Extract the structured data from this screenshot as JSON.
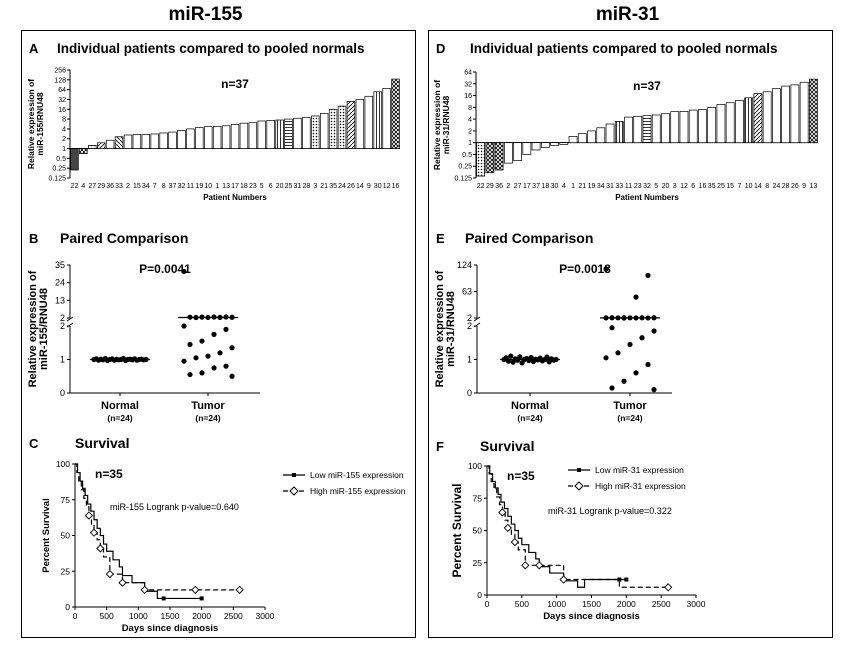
{
  "titles": {
    "left": "miR-155",
    "right": "miR-31"
  },
  "chart_data": [
    {
      "id": "A",
      "type": "bar",
      "letter": "A",
      "title": "Individual patients compared to pooled normals",
      "n_label": "n=37",
      "ylabel_lines": [
        "Relative expression of",
        "miR-155/RNU48"
      ],
      "xlabel": "Patient Numbers",
      "yscale": "log2",
      "ylim": [
        0.125,
        256
      ],
      "yticks": [
        "0.125",
        "0.25",
        "0.5",
        "1",
        "2",
        "4",
        "8",
        "16",
        "32",
        "64",
        "128",
        "256"
      ],
      "categories": [
        "22",
        "4",
        "27",
        "29",
        "36",
        "33",
        "2",
        "15",
        "34",
        "7",
        "8",
        "37",
        "32",
        "11",
        "19",
        "10",
        "1",
        "13",
        "17",
        "18",
        "23",
        "5",
        "6",
        "20",
        "25",
        "31",
        "28",
        "3",
        "21",
        "35",
        "24",
        "26",
        "14",
        "9",
        "30",
        "12",
        "16"
      ],
      "values": [
        0.22,
        0.7,
        1.25,
        1.5,
        1.8,
        2.3,
        2.6,
        2.7,
        2.7,
        2.8,
        3.0,
        3.2,
        3.6,
        4.0,
        4.4,
        4.7,
        4.8,
        5.0,
        5.5,
        6.0,
        6.2,
        7.0,
        7.3,
        7.5,
        8.0,
        8.5,
        9.0,
        10.0,
        12.0,
        16.0,
        20.0,
        28.0,
        32.0,
        40.0,
        55.0,
        70.0,
        135.0
      ],
      "patterns": [
        "solid",
        "cross",
        "dots",
        "diag",
        "plain",
        "hatch",
        "plain",
        "plain",
        "plain",
        "plain",
        "plain",
        "plain",
        "plain",
        "plain",
        "plain",
        "plain",
        "plain",
        "plain",
        "plain",
        "plain",
        "plain",
        "plain",
        "plain",
        "vline",
        "hline",
        "plain",
        "plain",
        "dots",
        "plain",
        "dots",
        "dots",
        "diag",
        "plain",
        "plain",
        "vline",
        "plain",
        "cross"
      ]
    },
    {
      "id": "D",
      "type": "bar",
      "letter": "D",
      "title": "Individual patients compared to pooled normals",
      "n_label": "n=37",
      "ylabel_lines": [
        "Relative expression of",
        "miR-31/RNU48"
      ],
      "xlabel": "Patient Numbers",
      "yscale": "log2",
      "ylim": [
        0.125,
        64
      ],
      "yticks": [
        "0.125",
        "0.25",
        "0.5",
        "1",
        "2",
        "4",
        "8",
        "16",
        "32",
        "64"
      ],
      "categories": [
        "22",
        "29",
        "36",
        "2",
        "27",
        "17",
        "37",
        "18",
        "30",
        "4",
        "1",
        "21",
        "19",
        "34",
        "31",
        "33",
        "11",
        "23",
        "32",
        "5",
        "20",
        "3",
        "12",
        "6",
        "16",
        "35",
        "25",
        "15",
        "7",
        "10",
        "14",
        "8",
        "24",
        "28",
        "26",
        "9",
        "13"
      ],
      "values": [
        0.14,
        0.17,
        0.2,
        0.3,
        0.35,
        0.5,
        0.65,
        0.75,
        0.85,
        0.9,
        1.45,
        1.7,
        2.0,
        2.4,
        3.0,
        3.5,
        4.5,
        4.7,
        4.9,
        5.1,
        5.5,
        6.2,
        6.3,
        6.8,
        7.0,
        8.0,
        9.5,
        10.5,
        12.0,
        14.0,
        18.0,
        20.0,
        24.0,
        28.0,
        30.0,
        35.0,
        42.0
      ],
      "patterns": [
        "dots",
        "cross",
        "cross",
        "plain",
        "plain",
        "plain",
        "plain",
        "plain",
        "plain",
        "plain",
        "plain",
        "plain",
        "plain",
        "plain",
        "plain",
        "vline",
        "plain",
        "plain",
        "hline",
        "plain",
        "plain",
        "plain",
        "plain",
        "plain",
        "plain",
        "plain",
        "plain",
        "plain",
        "plain",
        "vline",
        "diag",
        "plain",
        "plain",
        "plain",
        "plain",
        "plain",
        "cross"
      ]
    },
    {
      "id": "B",
      "type": "scatter",
      "letter": "B",
      "title": "Paired Comparison",
      "p_label": "P=0.0041",
      "ylabel_lines": [
        "Relative expression of",
        "miR-155/RNU48"
      ],
      "upper_ticks": [
        "2",
        "13",
        "24",
        "35"
      ],
      "upper_range": [
        2,
        35
      ],
      "lower_ticks": [
        "0",
        "1",
        "2"
      ],
      "lower_range": [
        0,
        2
      ],
      "groups": [
        {
          "name": "Normal",
          "n_label": "(n=24)",
          "mean": 1.0,
          "points": [
            1.0,
            1.02,
            0.98,
            1.01,
            0.99,
            1.03,
            0.97,
            1.0,
            1.02,
            0.98,
            1.01,
            0.99,
            1.0,
            1.03,
            0.97,
            1.0,
            1.01,
            0.99,
            1.02,
            0.98,
            1.0,
            1.01,
            0.99,
            1.0
          ]
        },
        {
          "name": "Tumor",
          "n_label": "(n=24)",
          "mean": 2.3,
          "points": [
            31,
            2.6,
            2.6,
            2.55,
            2.5,
            2.45,
            2.4,
            2.35,
            2.3,
            2.0,
            1.9,
            1.75,
            1.55,
            1.45,
            1.35,
            1.2,
            1.1,
            1.05,
            0.95,
            0.8,
            0.75,
            0.6,
            0.55,
            0.5
          ]
        }
      ]
    },
    {
      "id": "E",
      "type": "scatter",
      "letter": "E",
      "title": "Paired Comparison",
      "p_label": "P=0.0018",
      "ylabel_lines": [
        "Relative expression of",
        "miR-31/RNU48"
      ],
      "upper_ticks": [
        "2",
        "63",
        "124"
      ],
      "upper_range": [
        2,
        124
      ],
      "lower_ticks": [
        "0",
        "1",
        "2"
      ],
      "lower_range": [
        0,
        2
      ],
      "groups": [
        {
          "name": "Normal",
          "n_label": "(n=24)",
          "mean": 1.0,
          "points": [
            1.0,
            1.05,
            0.95,
            1.1,
            0.92,
            1.02,
            0.98,
            1.08,
            0.9,
            1.0,
            1.03,
            0.97,
            1.06,
            0.94,
            1.01,
            0.99,
            1.04,
            0.96,
            1.0,
            1.07,
            0.93,
            1.02,
            0.98,
            1.0
          ]
        },
        {
          "name": "Tumor",
          "n_label": "(n=24)",
          "mean": 2.3,
          "points": [
            115,
            100,
            50,
            2.65,
            2.6,
            2.55,
            2.5,
            2.45,
            2.4,
            2.3,
            2.2,
            2.15,
            2.05,
            1.95,
            1.85,
            1.65,
            1.45,
            1.2,
            1.05,
            0.85,
            0.6,
            0.35,
            0.15,
            0.1
          ]
        }
      ]
    },
    {
      "id": "C",
      "type": "line",
      "letter": "C",
      "title": "Survival",
      "n_label": "n=35",
      "xlabel": "Days since diagnosis",
      "ylabel": "Percent Survival",
      "xlim": [
        0,
        3000
      ],
      "ylim": [
        0,
        100
      ],
      "xticks": [
        "0",
        "500",
        "1000",
        "1500",
        "2000",
        "2500",
        "3000"
      ],
      "yticks": [
        "0",
        "25",
        "50",
        "75",
        "100"
      ],
      "logrank": "miR-155 Logrank p-value=0.640",
      "series": [
        {
          "name": "Low miR-155 expression",
          "style": "solid",
          "marker": "square",
          "x": [
            0,
            40,
            80,
            120,
            160,
            200,
            250,
            300,
            350,
            400,
            450,
            500,
            600,
            700,
            750,
            900,
            1100,
            1300,
            1400,
            2000
          ],
          "y": [
            100,
            94,
            88,
            83,
            78,
            72,
            67,
            61,
            55,
            50,
            44,
            39,
            33,
            28,
            22,
            17,
            11,
            6,
            6,
            6
          ],
          "markers": [
            [
              1400,
              6
            ],
            [
              2000,
              6
            ]
          ]
        },
        {
          "name": "High miR-155 expression",
          "style": "dashed",
          "marker": "diamond",
          "x": [
            0,
            30,
            60,
            100,
            140,
            180,
            220,
            260,
            300,
            350,
            400,
            450,
            550,
            750,
            1100,
            1900,
            2600
          ],
          "y": [
            100,
            94,
            88,
            82,
            76,
            70,
            64,
            58,
            52,
            47,
            41,
            35,
            23,
            17,
            12,
            12,
            12
          ],
          "markers": [
            [
              220,
              64
            ],
            [
              300,
              52
            ],
            [
              400,
              41
            ],
            [
              550,
              23
            ],
            [
              750,
              17
            ],
            [
              1100,
              12
            ],
            [
              1900,
              12
            ],
            [
              2600,
              12
            ]
          ]
        }
      ]
    },
    {
      "id": "F",
      "type": "line",
      "letter": "F",
      "title": "Survival",
      "n_label": "n=35",
      "xlabel": "Days since diagnosis",
      "ylabel": "Percent Survival",
      "xlim": [
        0,
        3000
      ],
      "ylim": [
        0,
        100
      ],
      "xticks": [
        "0",
        "500",
        "1000",
        "1500",
        "2000",
        "2500",
        "3000"
      ],
      "yticks": [
        "0",
        "25",
        "50",
        "75",
        "100"
      ],
      "logrank": "miR-31 Logrank p-value=0.322",
      "series": [
        {
          "name": "Low miR-31 expression",
          "style": "solid",
          "marker": "square",
          "x": [
            0,
            40,
            80,
            120,
            160,
            200,
            250,
            300,
            350,
            400,
            450,
            500,
            600,
            700,
            750,
            900,
            1100,
            1300,
            1400,
            2000
          ],
          "y": [
            100,
            94,
            88,
            83,
            78,
            72,
            67,
            61,
            55,
            50,
            44,
            39,
            33,
            28,
            22,
            17,
            11,
            6,
            12,
            12
          ],
          "markers": [
            [
              1900,
              12
            ],
            [
              2000,
              12
            ]
          ]
        },
        {
          "name": "High miR-31 expression",
          "style": "dashed",
          "marker": "diamond",
          "x": [
            0,
            30,
            60,
            100,
            140,
            180,
            220,
            260,
            300,
            350,
            400,
            450,
            550,
            750,
            1100,
            1900,
            2600
          ],
          "y": [
            100,
            94,
            88,
            82,
            76,
            70,
            64,
            58,
            52,
            47,
            41,
            35,
            23,
            23,
            12,
            6,
            6
          ],
          "markers": [
            [
              220,
              64
            ],
            [
              300,
              52
            ],
            [
              400,
              41
            ],
            [
              550,
              23
            ],
            [
              750,
              23
            ],
            [
              1100,
              12
            ],
            [
              2600,
              6
            ]
          ]
        }
      ]
    }
  ]
}
